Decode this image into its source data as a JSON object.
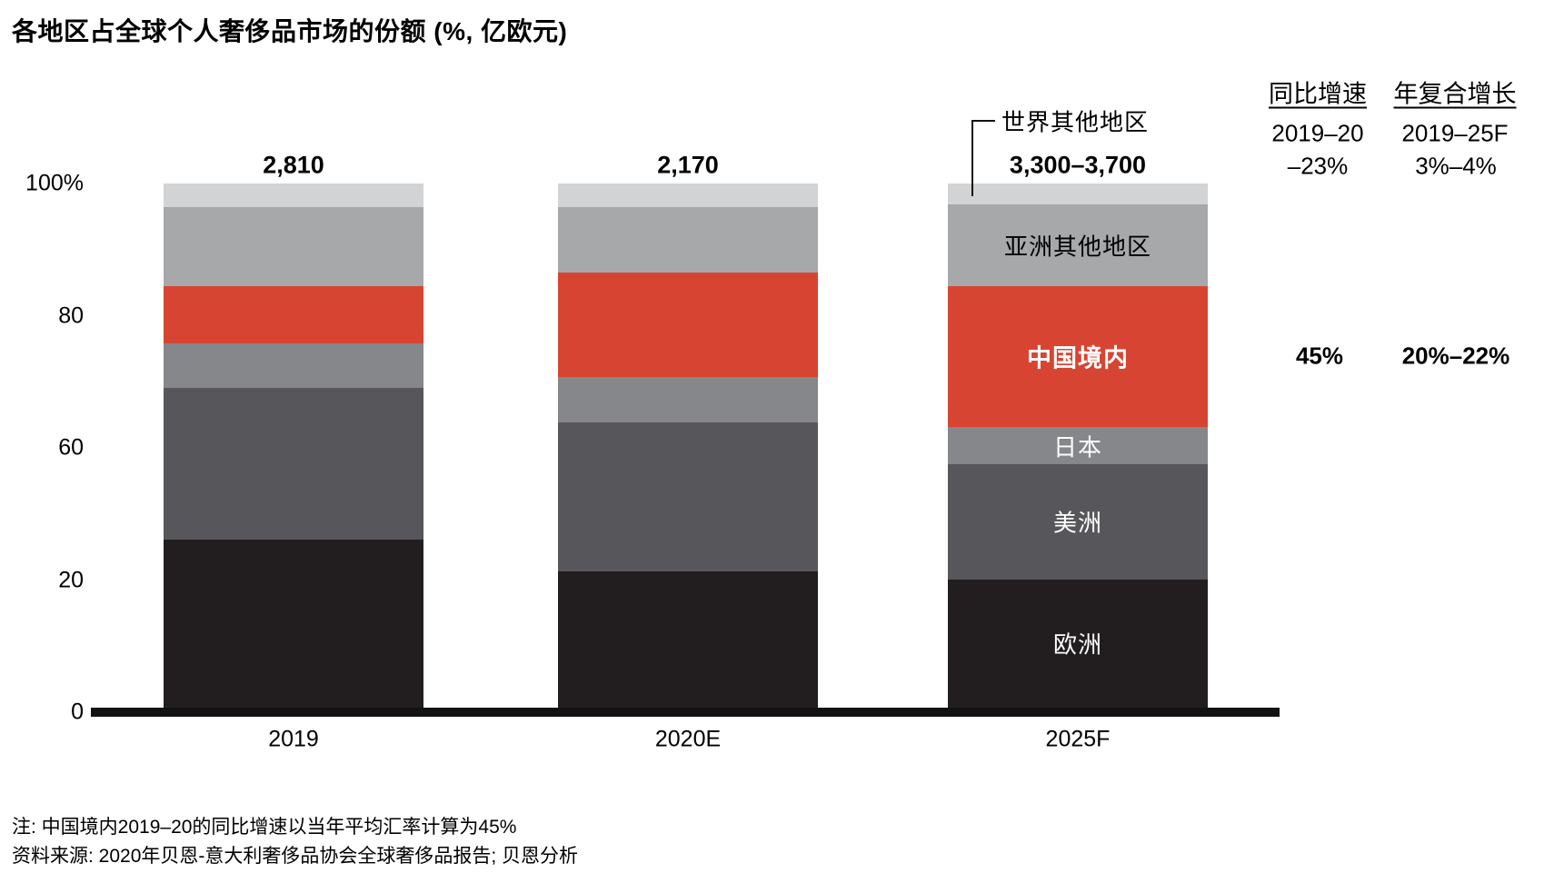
{
  "title": "各地区占全球个人奢侈品市场的份额 (%, 亿欧元)",
  "chart_data": {
    "type": "bar",
    "stacked": true,
    "title": "各地区占全球个人奢侈品市场的份额 (%, 亿欧元)",
    "unit": "% of market, totals in 亿欧元",
    "categories": [
      "2019",
      "2020E",
      "2025F"
    ],
    "totals": [
      "2,810",
      "2,170",
      "3,300–3,700"
    ],
    "ylim": [
      0,
      100
    ],
    "y_tick_labels": [
      "100%",
      "80",
      "60",
      "20",
      "0"
    ],
    "grid": false,
    "legend_position": "labels-on-last-bar",
    "series": [
      {
        "name": "欧洲",
        "color": "#221E20",
        "label_color": "#ffffff",
        "label_bold": false,
        "values": [
          32,
          26,
          24.5
        ]
      },
      {
        "name": "美洲",
        "color": "#57565A",
        "label_color": "#ffffff",
        "label_bold": false,
        "values": [
          29,
          28.5,
          22
        ]
      },
      {
        "name": "日本",
        "color": "#85878A",
        "label_color": "#ffffff",
        "label_bold": false,
        "values": [
          8.5,
          8.5,
          7
        ]
      },
      {
        "name": "中国境内",
        "color": "#D74532",
        "label_color": "#ffffff",
        "label_bold": true,
        "values": [
          11,
          20,
          27
        ]
      },
      {
        "name": "亚洲其他地区",
        "color": "#A7A8AA",
        "label_color": "#000000",
        "label_bold": false,
        "values": [
          15,
          12.5,
          15.5
        ]
      },
      {
        "name": "世界其他地区",
        "color": "#D2D3D4",
        "label_color": "#000000",
        "label_bold": false,
        "callout": true,
        "values": [
          4.5,
          4.5,
          4
        ]
      }
    ]
  },
  "callout": {
    "label": "世界其他地区"
  },
  "growth_table": {
    "columns": [
      {
        "header": "同比增速",
        "subheader": "2019–20",
        "market_value": "–23%",
        "china_value": "45%"
      },
      {
        "header": "年复合增长",
        "subheader": "2019–25F",
        "market_value": "3%–4%",
        "china_value": "20%–22%"
      }
    ]
  },
  "notes": [
    "注: 中国境内2019–20的同比增速以当年平均汇率计算为45%",
    "资料来源: 2020年贝恩-意大利奢侈品协会全球奢侈品报告; 贝恩分析"
  ]
}
